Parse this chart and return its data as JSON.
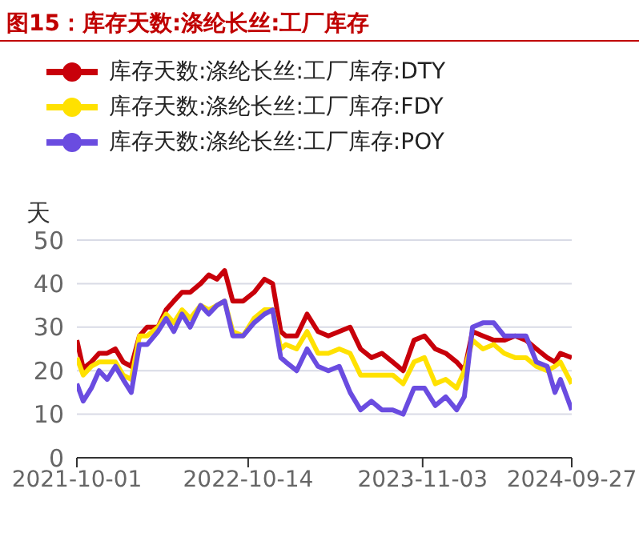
{
  "chart_data": {
    "type": "line",
    "title": "图15：库存天数:涤纶长丝:工厂库存",
    "ylabel": "天",
    "x": [
      "2021-10-01",
      "2021-10-15",
      "2021-11-02",
      "2021-11-19",
      "2021-12-07",
      "2021-12-25",
      "2022-01-11",
      "2022-01-29",
      "2022-02-16",
      "2022-03-05",
      "2022-03-29",
      "2022-04-16",
      "2022-05-03",
      "2022-05-21",
      "2022-06-08",
      "2022-07-01",
      "2022-07-19",
      "2022-08-06",
      "2022-08-23",
      "2022-09-10",
      "2022-10-03",
      "2022-10-27",
      "2022-11-19",
      "2022-12-07",
      "2022-12-25",
      "2023-01-05",
      "2023-01-29",
      "2023-02-21",
      "2023-03-17",
      "2023-04-09",
      "2023-05-03",
      "2023-05-27",
      "2023-06-19",
      "2023-07-13",
      "2023-08-05",
      "2023-08-29",
      "2023-09-21",
      "2023-10-15",
      "2023-11-07",
      "2023-12-01",
      "2023-12-24",
      "2024-01-17",
      "2024-02-03",
      "2024-02-21",
      "2024-03-15",
      "2024-04-08",
      "2024-05-01",
      "2024-05-25",
      "2024-06-18",
      "2024-07-11",
      "2024-08-04",
      "2024-08-21",
      "2024-09-02",
      "2024-09-27"
    ],
    "series": [
      {
        "name": "库存天数:涤纶长丝:工厂库存:DTY",
        "color": "#c8000a",
        "values": [
          27,
          20.5,
          22,
          24,
          24,
          25,
          22,
          21,
          28,
          30,
          30,
          34,
          36,
          38,
          38,
          40,
          42,
          41,
          43,
          36,
          36,
          38,
          41,
          40,
          29,
          28,
          28,
          33,
          29,
          28,
          29,
          30,
          25,
          23,
          24,
          22,
          20,
          27,
          28,
          25,
          24,
          22,
          20,
          29,
          28,
          27,
          27,
          28,
          27,
          25,
          23,
          22,
          24,
          23
        ]
      },
      {
        "name": "库存天数:涤纶长丝:工厂库存:FDY",
        "color": "#ffe100",
        "values": [
          23,
          19,
          21,
          22,
          22,
          22,
          19,
          18,
          28,
          28,
          30,
          33,
          31,
          34,
          32,
          35,
          34,
          35,
          36,
          29,
          28,
          32,
          34,
          34,
          25,
          26,
          25,
          29,
          24,
          24,
          25,
          24,
          19,
          19,
          19,
          19,
          17,
          22,
          23,
          17,
          18,
          16,
          20,
          27,
          25,
          26,
          24,
          23,
          23,
          21,
          20,
          21,
          22,
          17
        ]
      },
      {
        "name": "库存天数:涤纶长丝:工厂库存:POY",
        "color": "#6a4ce0",
        "values": [
          17,
          13,
          16,
          20,
          18,
          21,
          18,
          15,
          26,
          26,
          29,
          32,
          29,
          33,
          30,
          35,
          33,
          35,
          36,
          28,
          28,
          31,
          33,
          34,
          23,
          22,
          20,
          25,
          21,
          20,
          21,
          15,
          11,
          13,
          11,
          11,
          10,
          16,
          16,
          12,
          14,
          11,
          14,
          30,
          31,
          31,
          28,
          28,
          28,
          22,
          21,
          15,
          18,
          11
        ]
      }
    ],
    "xlim": [
      "2021-10-01",
      "2024-09-27"
    ],
    "xticks": [
      "2021-10-01",
      "2022-10-14",
      "2023-11-03",
      "2024-09-27"
    ],
    "ylim": [
      0,
      50
    ],
    "yticks": [
      0,
      10,
      20,
      30,
      40,
      50
    ],
    "grid": "y",
    "legend": "top left",
    "marker": "none",
    "line_style": "solid"
  }
}
